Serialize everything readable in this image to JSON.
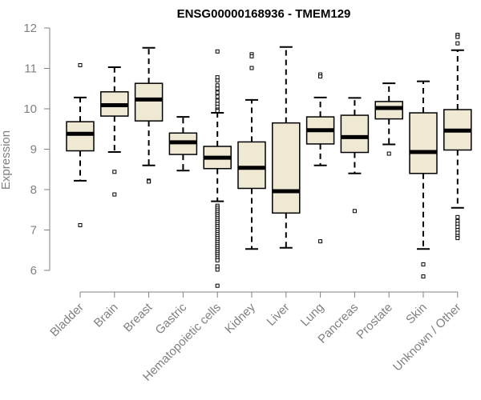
{
  "chart_data": {
    "type": "box",
    "title": "ENSG00000168936 - TMEM129",
    "ylabel": "Expression",
    "ylim": [
      5.5,
      12.0
    ],
    "yticks": [
      6,
      7,
      8,
      9,
      10,
      11,
      12
    ],
    "categories": [
      "Bladder",
      "Brain",
      "Breast",
      "Gastric",
      "Hematopoietic cells",
      "Kidney",
      "Liver",
      "Lung",
      "Pancreas",
      "Prostate",
      "Skin",
      "Unknown / Other"
    ],
    "box_color": "#efe9d3",
    "boxes": [
      {
        "category": "Bladder",
        "whisker_low": 8.22,
        "q1": 8.96,
        "median": 9.38,
        "q3": 9.68,
        "whisker_high": 10.28,
        "outliers": [
          11.08,
          7.12
        ]
      },
      {
        "category": "Brain",
        "whisker_low": 8.93,
        "q1": 9.82,
        "median": 10.09,
        "q3": 10.42,
        "whisker_high": 11.03,
        "outliers": [
          8.44,
          7.88
        ]
      },
      {
        "category": "Breast",
        "whisker_low": 8.6,
        "q1": 9.7,
        "median": 10.23,
        "q3": 10.63,
        "whisker_high": 11.51,
        "outliers": [
          8.22,
          8.2
        ]
      },
      {
        "category": "Gastric",
        "whisker_low": 8.47,
        "q1": 8.87,
        "median": 9.17,
        "q3": 9.4,
        "whisker_high": 9.8,
        "outliers": []
      },
      {
        "category": "Hematopoietic cells",
        "whisker_low": 7.71,
        "q1": 8.52,
        "median": 8.79,
        "q3": 9.07,
        "whisker_high": 9.9,
        "outliers": [
          11.42,
          10.78,
          10.7,
          10.58,
          10.5,
          10.4,
          10.3,
          10.2,
          10.12,
          10.05,
          9.98,
          9.95,
          7.6,
          7.55,
          7.5,
          7.45,
          7.4,
          7.35,
          7.3,
          7.25,
          7.2,
          7.15,
          7.1,
          7.05,
          7.0,
          6.95,
          6.9,
          6.85,
          6.8,
          6.75,
          6.7,
          6.65,
          6.6,
          6.55,
          6.5,
          6.45,
          6.4,
          6.35,
          6.3,
          6.25,
          6.1,
          6.02,
          5.62
        ]
      },
      {
        "category": "Kidney",
        "whisker_low": 6.53,
        "q1": 8.03,
        "median": 8.54,
        "q3": 9.18,
        "whisker_high": 10.22,
        "outliers": [
          11.35,
          11.3,
          11.01
        ]
      },
      {
        "category": "Liver",
        "whisker_low": 6.56,
        "q1": 7.42,
        "median": 7.96,
        "q3": 9.65,
        "whisker_high": 11.53,
        "outliers": []
      },
      {
        "category": "Lung",
        "whisker_low": 8.6,
        "q1": 9.13,
        "median": 9.47,
        "q3": 9.8,
        "whisker_high": 10.28,
        "outliers": [
          10.85,
          10.8,
          6.72
        ]
      },
      {
        "category": "Pancreas",
        "whisker_low": 8.4,
        "q1": 8.92,
        "median": 9.3,
        "q3": 9.84,
        "whisker_high": 10.27,
        "outliers": [
          7.47
        ]
      },
      {
        "category": "Prostate",
        "whisker_low": 9.12,
        "q1": 9.75,
        "median": 10.02,
        "q3": 10.18,
        "whisker_high": 10.63,
        "outliers": [
          8.89
        ]
      },
      {
        "category": "Skin",
        "whisker_low": 6.53,
        "q1": 8.4,
        "median": 8.93,
        "q3": 9.9,
        "whisker_high": 10.68,
        "outliers": [
          6.15,
          5.85
        ]
      },
      {
        "category": "Unknown / Other",
        "whisker_low": 7.55,
        "q1": 8.98,
        "median": 9.46,
        "q3": 9.98,
        "whisker_high": 11.45,
        "outliers": [
          11.83,
          11.78,
          11.62,
          7.32,
          7.22,
          7.15,
          7.08,
          7.0,
          6.93,
          6.85,
          6.8
        ]
      }
    ],
    "grid": false,
    "legend": "none"
  }
}
